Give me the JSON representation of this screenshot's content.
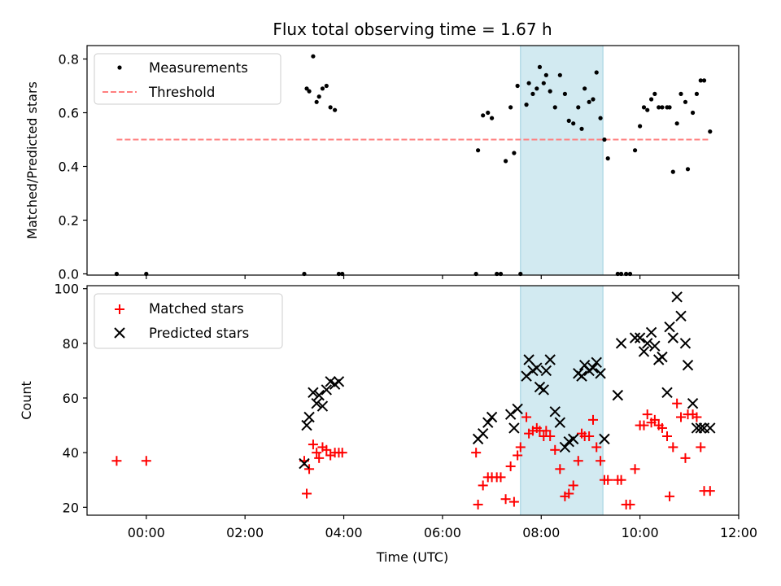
{
  "chart_data": [
    {
      "type": "scatter",
      "title": "Flux total observing time = 1.67 h",
      "xlabel": "",
      "ylabel": "Matched/Predicted stars",
      "xlim": [
        -1.2,
        12.0
      ],
      "ylim": [
        0.0,
        0.85
      ],
      "yticks": [
        0.0,
        0.2,
        0.4,
        0.6,
        0.8
      ],
      "ytick_labels": [
        "0.0",
        "0.2",
        "0.4",
        "0.6",
        "0.8"
      ],
      "legend_position": "top-left",
      "shaded_interval": [
        7.58,
        9.25
      ],
      "series": [
        {
          "name": "Measurements",
          "marker": "dot",
          "color": "#000000",
          "x": [
            -0.6,
            0.0,
            3.2,
            3.25,
            3.3,
            3.38,
            3.45,
            3.5,
            3.57,
            3.65,
            3.73,
            3.82,
            3.9,
            3.97,
            6.68,
            6.72,
            6.82,
            6.92,
            7.0,
            7.1,
            7.18,
            7.28,
            7.38,
            7.45,
            7.52,
            7.58,
            7.7,
            7.75,
            7.83,
            7.91,
            7.97,
            8.05,
            8.1,
            8.18,
            8.28,
            8.38,
            8.48,
            8.56,
            8.65,
            8.75,
            8.82,
            8.88,
            8.97,
            9.05,
            9.12,
            9.2,
            9.28,
            9.35,
            9.55,
            9.62,
            9.72,
            9.8,
            9.9,
            10.0,
            10.08,
            10.15,
            10.23,
            10.3,
            10.38,
            10.45,
            10.55,
            10.6,
            10.67,
            10.75,
            10.83,
            10.92,
            10.97,
            11.07,
            11.15,
            11.23,
            11.3,
            11.42
          ],
          "y": [
            0.0,
            0.0,
            0.0,
            0.69,
            0.68,
            0.81,
            0.64,
            0.66,
            0.69,
            0.7,
            0.62,
            0.61,
            0.0,
            0.0,
            0.0,
            0.46,
            0.59,
            0.6,
            0.58,
            0.0,
            0.0,
            0.42,
            0.62,
            0.45,
            0.7,
            0.0,
            0.63,
            0.71,
            0.67,
            0.69,
            0.77,
            0.71,
            0.74,
            0.68,
            0.62,
            0.74,
            0.67,
            0.57,
            0.56,
            0.62,
            0.54,
            0.69,
            0.64,
            0.65,
            0.75,
            0.58,
            0.5,
            0.43,
            0.0,
            0.0,
            0.0,
            0.0,
            0.46,
            0.55,
            0.62,
            0.61,
            0.65,
            0.67,
            0.62,
            0.62,
            0.62,
            0.62,
            0.38,
            0.56,
            0.67,
            0.64,
            0.39,
            0.6,
            0.67,
            0.72,
            0.72,
            0.53
          ]
        },
        {
          "name": "Threshold",
          "line": "dashed",
          "color": "#ff7f7f",
          "x": [
            -0.6,
            11.42
          ],
          "y": [
            0.5,
            0.5
          ]
        }
      ]
    },
    {
      "type": "scatter",
      "title": "",
      "xlabel": "Time (UTC)",
      "ylabel": "Count",
      "xlim": [
        -1.2,
        12.0
      ],
      "ylim": [
        17,
        101
      ],
      "xticks": [
        0,
        2,
        4,
        6,
        8,
        10,
        12
      ],
      "xtick_labels": [
        "00:00",
        "02:00",
        "04:00",
        "06:00",
        "08:00",
        "10:00",
        "12:00"
      ],
      "yticks": [
        20,
        40,
        60,
        80,
        100
      ],
      "ytick_labels": [
        "20",
        "40",
        "60",
        "80",
        "100"
      ],
      "legend_position": "top-left",
      "shaded_interval": [
        7.58,
        9.25
      ],
      "series": [
        {
          "name": "Matched stars",
          "marker": "plus",
          "color": "#ff0000",
          "x": [
            -0.6,
            0.0,
            3.2,
            3.25,
            3.3,
            3.38,
            3.45,
            3.5,
            3.57,
            3.65,
            3.73,
            3.82,
            3.9,
            3.97,
            6.68,
            6.72,
            6.82,
            6.92,
            7.0,
            7.1,
            7.18,
            7.28,
            7.38,
            7.45,
            7.52,
            7.58,
            7.7,
            7.75,
            7.83,
            7.91,
            7.97,
            8.05,
            8.1,
            8.18,
            8.28,
            8.38,
            8.48,
            8.56,
            8.65,
            8.75,
            8.82,
            8.88,
            8.97,
            9.05,
            9.12,
            9.2,
            9.28,
            9.35,
            9.55,
            9.62,
            9.72,
            9.8,
            9.9,
            10.0,
            10.08,
            10.15,
            10.23,
            10.3,
            10.38,
            10.45,
            10.55,
            10.6,
            10.67,
            10.75,
            10.83,
            10.92,
            10.97,
            11.07,
            11.15,
            11.23,
            11.3,
            11.42
          ],
          "y": [
            37,
            37,
            37,
            25,
            34,
            43,
            40,
            38,
            42,
            41,
            39,
            40,
            40,
            40,
            40,
            21,
            28,
            31,
            31,
            31,
            31,
            23,
            35,
            22,
            39,
            42,
            53,
            47,
            48,
            49,
            48,
            46,
            48,
            46,
            41,
            34,
            24,
            25,
            28,
            37,
            47,
            46,
            46,
            52,
            42,
            37,
            30,
            30,
            30,
            30,
            21,
            21,
            34,
            50,
            50,
            54,
            51,
            52,
            50,
            49,
            46,
            24,
            42,
            58,
            53,
            38,
            54,
            54,
            53,
            42,
            26,
            26
          ],
          "_note": ""
        },
        {
          "name": "Predicted stars",
          "marker": "x",
          "color": "#000000",
          "x": [
            3.2,
            3.25,
            3.3,
            3.38,
            3.45,
            3.5,
            3.57,
            3.65,
            3.73,
            3.82,
            3.9,
            6.72,
            6.82,
            6.92,
            7.0,
            7.38,
            7.45,
            7.52,
            7.7,
            7.75,
            7.83,
            7.91,
            7.97,
            8.05,
            8.1,
            8.18,
            8.28,
            8.38,
            8.48,
            8.56,
            8.65,
            8.75,
            8.82,
            8.88,
            8.97,
            9.05,
            9.12,
            9.2,
            9.28,
            9.55,
            9.62,
            9.9,
            10.0,
            10.08,
            10.15,
            10.23,
            10.3,
            10.38,
            10.45,
            10.55,
            10.6,
            10.67,
            10.75,
            10.83,
            10.92,
            10.97,
            11.07,
            11.15,
            11.23,
            11.3,
            11.42
          ],
          "y": [
            36,
            50,
            53,
            62,
            58,
            61,
            57,
            63,
            66,
            65,
            66,
            45,
            47,
            51,
            53,
            54,
            49,
            56,
            68,
            74,
            70,
            71,
            64,
            63,
            70,
            74,
            55,
            51,
            42,
            44,
            45,
            69,
            68,
            72,
            70,
            71,
            73,
            69,
            45,
            61,
            80,
            82,
            82,
            77,
            80,
            84,
            79,
            74,
            75,
            62,
            86,
            82,
            97,
            90,
            80,
            72,
            58,
            49,
            49,
            49,
            49
          ]
        }
      ]
    }
  ]
}
